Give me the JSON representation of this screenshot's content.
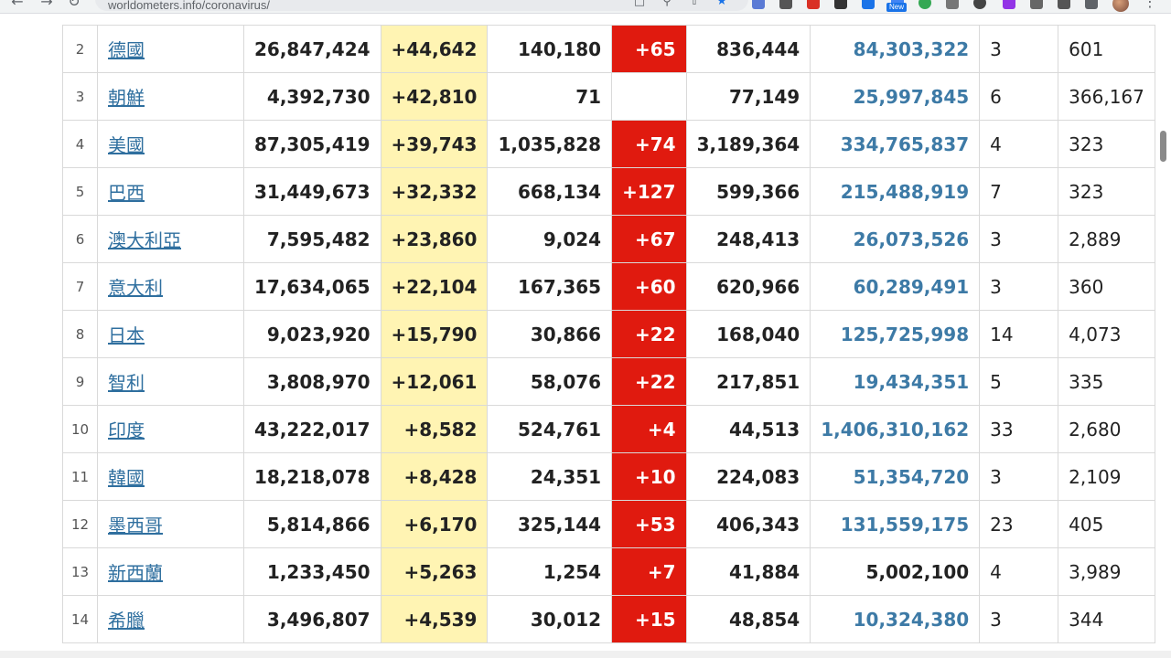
{
  "browser": {
    "url": "worldometers.info/coronavirus/",
    "new_badge": "New"
  },
  "table": {
    "rows": [
      {
        "rank": "2",
        "country": "德國",
        "total_cases": "26,847,424",
        "new_cases": "+44,642",
        "total_deaths": "140,180",
        "new_deaths": "+65",
        "active_cases": "836,444",
        "population": "84,303,322",
        "pop_linked": true,
        "col9": "3",
        "col10": "601"
      },
      {
        "rank": "3",
        "country": "朝鮮",
        "total_cases": "4,392,730",
        "new_cases": "+42,810",
        "total_deaths": "71",
        "new_deaths": "",
        "active_cases": "77,149",
        "population": "25,997,845",
        "pop_linked": true,
        "col9": "6",
        "col10": "366,167"
      },
      {
        "rank": "4",
        "country": "美國",
        "total_cases": "87,305,419",
        "new_cases": "+39,743",
        "total_deaths": "1,035,828",
        "new_deaths": "+74",
        "active_cases": "3,189,364",
        "population": "334,765,837",
        "pop_linked": true,
        "col9": "4",
        "col10": "323"
      },
      {
        "rank": "5",
        "country": "巴西",
        "total_cases": "31,449,673",
        "new_cases": "+32,332",
        "total_deaths": "668,134",
        "new_deaths": "+127",
        "active_cases": "599,366",
        "population": "215,488,919",
        "pop_linked": true,
        "col9": "7",
        "col10": "323"
      },
      {
        "rank": "6",
        "country": "澳大利亞",
        "total_cases": "7,595,482",
        "new_cases": "+23,860",
        "total_deaths": "9,024",
        "new_deaths": "+67",
        "active_cases": "248,413",
        "population": "26,073,526",
        "pop_linked": true,
        "col9": "3",
        "col10": "2,889"
      },
      {
        "rank": "7",
        "country": "意大利",
        "total_cases": "17,634,065",
        "new_cases": "+22,104",
        "total_deaths": "167,365",
        "new_deaths": "+60",
        "active_cases": "620,966",
        "population": "60,289,491",
        "pop_linked": true,
        "col9": "3",
        "col10": "360"
      },
      {
        "rank": "8",
        "country": "日本",
        "total_cases": "9,023,920",
        "new_cases": "+15,790",
        "total_deaths": "30,866",
        "new_deaths": "+22",
        "active_cases": "168,040",
        "population": "125,725,998",
        "pop_linked": true,
        "col9": "14",
        "col10": "4,073"
      },
      {
        "rank": "9",
        "country": "智利",
        "total_cases": "3,808,970",
        "new_cases": "+12,061",
        "total_deaths": "58,076",
        "new_deaths": "+22",
        "active_cases": "217,851",
        "population": "19,434,351",
        "pop_linked": true,
        "col9": "5",
        "col10": "335"
      },
      {
        "rank": "10",
        "country": "印度",
        "total_cases": "43,222,017",
        "new_cases": "+8,582",
        "total_deaths": "524,761",
        "new_deaths": "+4",
        "active_cases": "44,513",
        "population": "1,406,310,162",
        "pop_linked": true,
        "col9": "33",
        "col10": "2,680"
      },
      {
        "rank": "11",
        "country": "韓國",
        "total_cases": "18,218,078",
        "new_cases": "+8,428",
        "total_deaths": "24,351",
        "new_deaths": "+10",
        "active_cases": "224,083",
        "population": "51,354,720",
        "pop_linked": true,
        "col9": "3",
        "col10": "2,109"
      },
      {
        "rank": "12",
        "country": "墨西哥",
        "total_cases": "5,814,866",
        "new_cases": "+6,170",
        "total_deaths": "325,144",
        "new_deaths": "+53",
        "active_cases": "406,343",
        "population": "131,559,175",
        "pop_linked": true,
        "col9": "23",
        "col10": "405"
      },
      {
        "rank": "13",
        "country": "新西蘭",
        "total_cases": "1,233,450",
        "new_cases": "+5,263",
        "total_deaths": "1,254",
        "new_deaths": "+7",
        "active_cases": "41,884",
        "population": "5,002,100",
        "pop_linked": false,
        "col9": "4",
        "col10": "3,989"
      },
      {
        "rank": "14",
        "country": "希臘",
        "total_cases": "3,496,807",
        "new_cases": "+4,539",
        "total_deaths": "30,012",
        "new_deaths": "+15",
        "active_cases": "48,854",
        "population": "10,324,380",
        "pop_linked": true,
        "col9": "3",
        "col10": "344"
      }
    ]
  },
  "colors": {
    "new_cases_bg": "#fff4b3",
    "new_deaths_bg": "#e01a0f",
    "link": "#2f6f9f",
    "population_link": "#3d7aa6"
  }
}
